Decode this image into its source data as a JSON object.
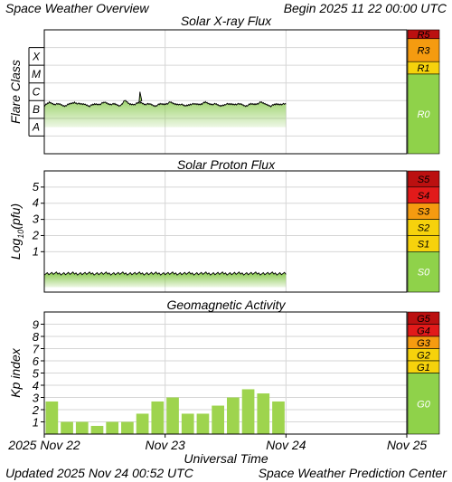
{
  "header": {
    "left": "Space Weather Overview",
    "begin": "Begin 2025 11 22 00:00 UTC"
  },
  "footer": {
    "updated": "Updated 2025 Nov 24 00:52 UTC",
    "source": "Space Weather Prediction Center"
  },
  "xaxis": {
    "label": "Universal Time",
    "ticks": [
      "2025 Nov 22",
      "Nov 23",
      "Nov 24",
      "Nov 25"
    ]
  },
  "colors": {
    "fill_green": "#86c84a",
    "bar_green": "#9ed44e",
    "g0": "#8fd24a",
    "yellow": "#f6d20c",
    "orange": "#f59b10",
    "red": "#e21a1a",
    "darkred": "#bb1010",
    "grid": "#d6d6d6",
    "frame": "#000000"
  },
  "chart_data": [
    {
      "type": "area",
      "title": "Solar X-ray Flux",
      "ylabel": "Flare Class",
      "y_scale": "log10 W/m²",
      "ylim": [
        -9,
        -2
      ],
      "flare_classes": [
        "X",
        "M",
        "C",
        "B",
        "A"
      ],
      "scale_bands": [
        {
          "name": "R5",
          "color": "#bb1010"
        },
        {
          "name": "R3",
          "color": "#f59b10"
        },
        {
          "name": "R1",
          "color": "#f6d20c"
        },
        {
          "name": "R0",
          "color": "#8fd24a"
        }
      ],
      "x": [
        0,
        1,
        2,
        3,
        4,
        5,
        6,
        7,
        8,
        9,
        10,
        11,
        12,
        13,
        14,
        15,
        16,
        17,
        18,
        19,
        20,
        21,
        22,
        23,
        24,
        25,
        26,
        27,
        28,
        29,
        30,
        31,
        32,
        33,
        34,
        35,
        36,
        37,
        38,
        39,
        40,
        41,
        42,
        43,
        44,
        45,
        46,
        47,
        48
      ],
      "x_unit": "hours since 2025 Nov 22 00:00 UTC",
      "values": [
        -6.3,
        -6.1,
        -6.2,
        -6.2,
        -6.3,
        -6.2,
        -6.1,
        -6.2,
        -6.2,
        -6.3,
        -6.2,
        -6.2,
        -6.1,
        -6.2,
        -6.2,
        -6.3,
        -6.0,
        -6.2,
        -6.2,
        -6.1,
        -6.2,
        -6.2,
        -6.3,
        -6.2,
        -6.2,
        -6.1,
        -6.2,
        -6.2,
        -6.3,
        -6.2,
        -6.2,
        -6.2,
        -6.1,
        -6.2,
        -6.2,
        -6.3,
        -6.2,
        -6.2,
        -6.2,
        -6.2,
        -6.3,
        -6.2,
        -6.2,
        -6.1,
        -6.2,
        -6.3,
        -6.2,
        -6.2,
        -6.2
      ],
      "peaks": [
        {
          "x": 19,
          "value": -5.5
        }
      ]
    },
    {
      "type": "area",
      "title": "Solar Proton Flux",
      "ylabel": "Log10(pfu)",
      "ylim": [
        -1.5,
        6
      ],
      "yticks": [
        1,
        2,
        3,
        4,
        5
      ],
      "scale_bands": [
        {
          "name": "S5",
          "color": "#bb1010"
        },
        {
          "name": "S4",
          "color": "#e21a1a"
        },
        {
          "name": "S3",
          "color": "#f59b10"
        },
        {
          "name": "S2",
          "color": "#f6d20c"
        },
        {
          "name": "S1",
          "color": "#f6d20c"
        },
        {
          "name": "S0",
          "color": "#8fd24a"
        }
      ],
      "x": [
        0,
        48
      ],
      "x_unit": "hours since 2025 Nov 22 00:00 UTC",
      "values": [
        -0.35,
        -0.35
      ]
    },
    {
      "type": "bar",
      "title": "Geomagnetic Activity",
      "ylabel": "Kp index",
      "ylim": [
        0,
        10
      ],
      "yticks": [
        1,
        2,
        3,
        4,
        5,
        6,
        7,
        8,
        9
      ],
      "scale_bands": [
        {
          "name": "G5",
          "color": "#bb1010"
        },
        {
          "name": "G4",
          "color": "#e21a1a"
        },
        {
          "name": "G3",
          "color": "#f59b10"
        },
        {
          "name": "G2",
          "color": "#f6d20c"
        },
        {
          "name": "G1",
          "color": "#f6d20c"
        },
        {
          "name": "G0",
          "color": "#8fd24a"
        }
      ],
      "x_unit": "3-hour intervals from 2025 Nov 22 00:00 UTC",
      "values": [
        2.67,
        1.0,
        1.0,
        0.67,
        1.0,
        1.0,
        1.67,
        2.67,
        3.0,
        1.67,
        1.67,
        2.33,
        3.0,
        3.67,
        3.33,
        2.67
      ]
    }
  ]
}
